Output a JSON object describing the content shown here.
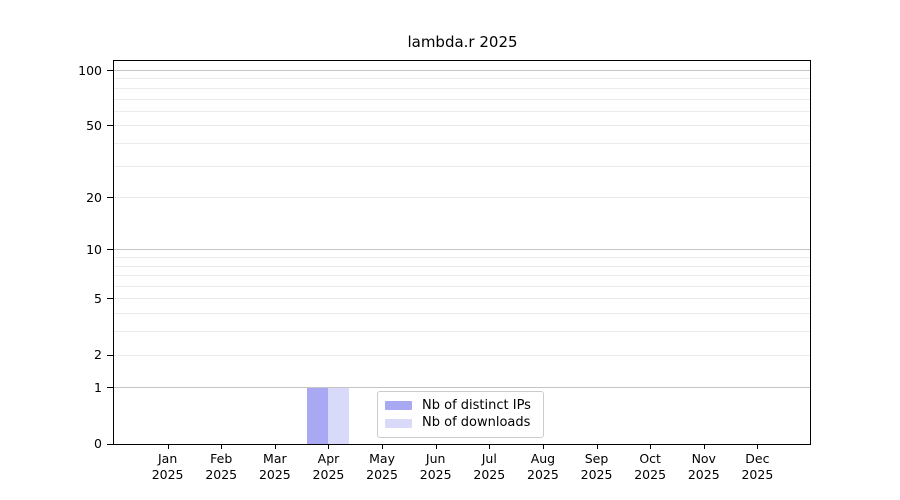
{
  "chart_data": {
    "type": "bar",
    "title": "lambda.r 2025",
    "categories": [
      "Jan",
      "Feb",
      "Mar",
      "Apr",
      "May",
      "Jun",
      "Jul",
      "Aug",
      "Sep",
      "Oct",
      "Nov",
      "Dec"
    ],
    "x_year_label": "2025",
    "series": [
      {
        "name": "Nb of distinct IPs",
        "color": "#a8a8f3",
        "values": [
          0,
          0,
          0,
          1,
          0,
          0,
          0,
          0,
          0,
          0,
          0,
          0
        ]
      },
      {
        "name": "Nb of downloads",
        "color": "#d9d9fa",
        "values": [
          0,
          0,
          0,
          1,
          0,
          0,
          0,
          0,
          0,
          0,
          0,
          0
        ]
      }
    ],
    "xlabel": "",
    "ylabel": "",
    "y_scale": "log10(1+value)",
    "ylim": [
      0,
      114
    ],
    "y_tick_labels": [
      100,
      50,
      20,
      10,
      5,
      2,
      1,
      0
    ],
    "y_gridlines_major": [
      1,
      10,
      100
    ],
    "y_gridlines_minor": [
      2,
      3,
      4,
      5,
      6,
      7,
      8,
      9,
      20,
      30,
      40,
      50,
      60,
      70,
      80,
      90
    ],
    "grid": {
      "on": true,
      "major_color": "#c4c4c4",
      "minor_color": "#ebebeb"
    },
    "legend_position": "inside lower-center",
    "colors": {
      "spine": "#000000",
      "text": "#000000",
      "background": "#ffffff"
    }
  }
}
